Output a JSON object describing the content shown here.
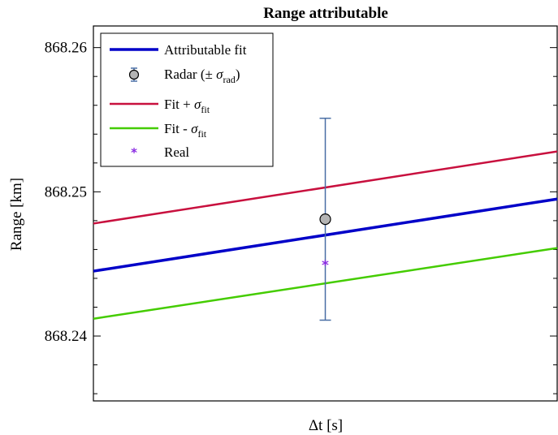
{
  "chart_data": {
    "type": "line",
    "title": "Range attributable",
    "xlabel": "Δt [s]",
    "ylabel": "Range [km]",
    "ylim": [
      868.2355,
      868.2615
    ],
    "xlim": [
      0,
      1
    ],
    "yticks": [
      868.24,
      868.25,
      868.26
    ],
    "ytick_labels": [
      "868.24",
      "868.25",
      "868.26"
    ],
    "minor_ytick_step": 0.002,
    "grid": false,
    "legend_position": "top-left",
    "colors": {
      "attributable_fit": "#0000c8",
      "fit_plus": "#c8103e",
      "fit_minus": "#44cc00",
      "radar_marker_fill": "#b4b4b4",
      "radar_errorbar": "#4a6fa5",
      "real": "#8a2be2"
    },
    "series": [
      {
        "name": "Attributable fit",
        "x": [
          0,
          1
        ],
        "y": [
          868.2445,
          868.2495
        ]
      },
      {
        "name": "Fit + σ_fit",
        "x": [
          0,
          1
        ],
        "y": [
          868.2478,
          868.2528
        ]
      },
      {
        "name": "Fit - σ_fit",
        "x": [
          0,
          1
        ],
        "y": [
          868.2412,
          868.2461
        ]
      }
    ],
    "radar": {
      "name": "Radar (± σ_rad)",
      "x": 0.5,
      "y": 868.2481,
      "err_low": 868.2411,
      "err_high": 868.2551
    },
    "real": {
      "name": "Real",
      "x": 0.5,
      "y": 868.2451
    },
    "legend": {
      "fit": {
        "main": "Attributable fit"
      },
      "radar": {
        "main": "Radar (± ",
        "sym": "σ",
        "sub": "rad",
        "tail": ")"
      },
      "plus": {
        "main": "Fit + ",
        "sym": "σ",
        "sub": "fit"
      },
      "minus": {
        "main": "Fit - ",
        "sym": "σ",
        "sub": "fit"
      },
      "real": {
        "main": "Real"
      }
    }
  }
}
